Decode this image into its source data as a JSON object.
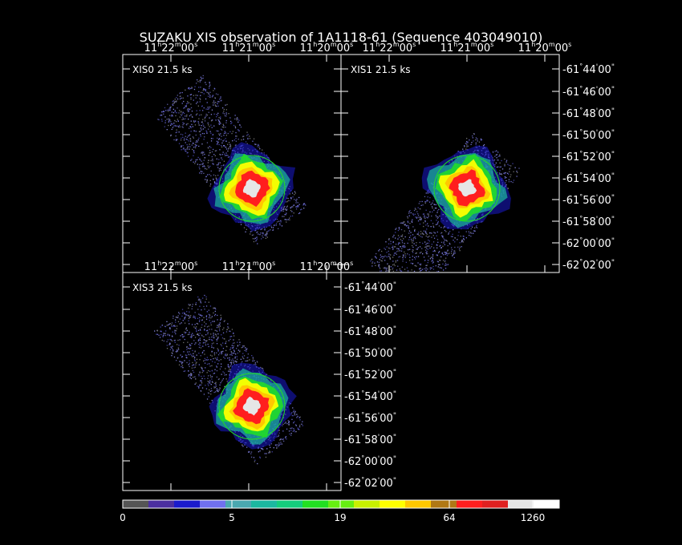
{
  "title": "SUZAKU XIS observation of 1A1118-61  (Sequence 403049010)",
  "ra_ticks": [
    {
      "h": "11",
      "m": "22",
      "s": "00"
    },
    {
      "h": "11",
      "m": "21",
      "s": "00"
    },
    {
      "h": "11",
      "m": "20",
      "s": "00"
    }
  ],
  "dec_ticks": [
    {
      "d": "-61",
      "m": "44",
      "s": "00"
    },
    {
      "d": "-61",
      "m": "46",
      "s": "00"
    },
    {
      "d": "-61",
      "m": "48",
      "s": "00"
    },
    {
      "d": "-61",
      "m": "50",
      "s": "00"
    },
    {
      "d": "-61",
      "m": "52",
      "s": "00"
    },
    {
      "d": "-61",
      "m": "54",
      "s": "00"
    },
    {
      "d": "-61",
      "m": "56",
      "s": "00"
    },
    {
      "d": "-61",
      "m": "58",
      "s": "00"
    },
    {
      "d": "-62",
      "m": "00",
      "s": "00"
    },
    {
      "d": "-62",
      "m": "02",
      "s": "00"
    }
  ],
  "panels": [
    {
      "label": "XIS0 21.5 ks",
      "orientation": "nw-se"
    },
    {
      "label": "XIS1 21.5 ks",
      "orientation": "ne-sw"
    },
    {
      "label": "XIS3 21.5 ks",
      "orientation": "nw-se"
    }
  ],
  "colorbar": {
    "labels": [
      "0",
      "5",
      "19",
      "64",
      "1260"
    ],
    "colors": [
      "#555555",
      "#4b2fa0",
      "#1a1acc",
      "#7070ee",
      "#4aa8b0",
      "#1cb8a0",
      "#14cc7c",
      "#22e022",
      "#66ee11",
      "#c8f000",
      "#ffff00",
      "#ffc800",
      "#b07814",
      "#ff1e1e",
      "#e02020",
      "#e6e6e6",
      "#ffffff"
    ]
  }
}
